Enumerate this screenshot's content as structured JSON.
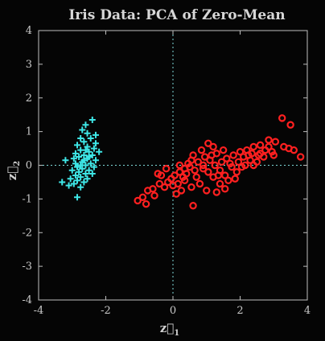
{
  "chart_data": {
    "type": "scatter",
    "title": "Iris Data: PCA of Zero-Mean",
    "xlabel": "z⃗",
    "xlabel_sub": "1",
    "ylabel": "z⃗",
    "ylabel_sub": "2",
    "xlim": [
      -4,
      4
    ],
    "ylim": [
      -4,
      4
    ],
    "xticks": [
      -4,
      -2,
      0,
      2,
      4
    ],
    "yticks": [
      -4,
      -3,
      -2,
      -1,
      0,
      1,
      2,
      3,
      4
    ],
    "grid": false,
    "reference_lines": {
      "x": 0,
      "y": 0,
      "style": "dotted"
    },
    "colors": {
      "background": "#050505",
      "axes": "#bfbfbf",
      "series_1": "#3ee6e6",
      "series_2": "#ff2020",
      "reference": "#7fd9d9"
    },
    "series": [
      {
        "marker": "plus",
        "color": "#3ee6e6",
        "points": [
          [
            -2.4,
            1.35
          ],
          [
            -2.6,
            1.2
          ],
          [
            -2.7,
            1.05
          ],
          [
            -2.55,
            0.95
          ],
          [
            -2.75,
            0.8
          ],
          [
            -2.45,
            0.8
          ],
          [
            -2.65,
            0.7
          ],
          [
            -2.3,
            0.65
          ],
          [
            -2.85,
            0.6
          ],
          [
            -2.55,
            0.55
          ],
          [
            -2.35,
            0.5
          ],
          [
            -2.75,
            0.45
          ],
          [
            -2.5,
            0.4
          ],
          [
            -2.2,
            0.4
          ],
          [
            -2.9,
            0.35
          ],
          [
            -2.65,
            0.3
          ],
          [
            -2.4,
            0.3
          ],
          [
            -2.8,
            0.25
          ],
          [
            -2.55,
            0.2
          ],
          [
            -2.3,
            0.15
          ],
          [
            -3.2,
            0.15
          ],
          [
            -2.7,
            0.1
          ],
          [
            -2.9,
            0.05
          ],
          [
            -2.45,
            0.05
          ],
          [
            -2.6,
            0.0
          ],
          [
            -2.85,
            -0.05
          ],
          [
            -2.35,
            -0.05
          ],
          [
            -2.7,
            -0.1
          ],
          [
            -3.0,
            -0.15
          ],
          [
            -2.5,
            -0.15
          ],
          [
            -2.8,
            -0.2
          ],
          [
            -2.6,
            -0.25
          ],
          [
            -2.9,
            -0.3
          ],
          [
            -2.75,
            -0.35
          ],
          [
            -3.05,
            -0.4
          ],
          [
            -2.55,
            -0.4
          ],
          [
            -2.85,
            -0.45
          ],
          [
            -2.65,
            -0.5
          ],
          [
            -3.3,
            -0.5
          ],
          [
            -2.95,
            -0.55
          ],
          [
            -3.1,
            -0.6
          ],
          [
            -2.75,
            -0.65
          ],
          [
            -2.85,
            -0.95
          ],
          [
            -2.5,
            0.25
          ],
          [
            -2.65,
            0.15
          ],
          [
            -2.4,
            -0.25
          ],
          [
            -2.6,
            0.45
          ],
          [
            -2.75,
            0.0
          ],
          [
            -2.95,
            0.2
          ],
          [
            -2.3,
            0.9
          ]
        ]
      },
      {
        "marker": "circle",
        "color": "#ff2020",
        "points": [
          [
            3.25,
            1.4
          ],
          [
            3.5,
            1.2
          ],
          [
            2.85,
            0.75
          ],
          [
            3.05,
            0.7
          ],
          [
            3.3,
            0.55
          ],
          [
            3.45,
            0.5
          ],
          [
            3.8,
            0.25
          ],
          [
            2.4,
            0.55
          ],
          [
            2.6,
            0.6
          ],
          [
            2.75,
            0.45
          ],
          [
            2.95,
            0.4
          ],
          [
            2.2,
            0.45
          ],
          [
            2.35,
            0.35
          ],
          [
            2.55,
            0.3
          ],
          [
            2.7,
            0.25
          ],
          [
            2.1,
            0.25
          ],
          [
            2.3,
            0.15
          ],
          [
            2.5,
            0.1
          ],
          [
            2.0,
            0.4
          ],
          [
            1.8,
            0.3
          ],
          [
            1.95,
            0.1
          ],
          [
            2.15,
            0.0
          ],
          [
            1.75,
            -0.05
          ],
          [
            1.6,
            0.2
          ],
          [
            1.45,
            0.1
          ],
          [
            1.3,
            0.35
          ],
          [
            1.2,
            0.55
          ],
          [
            1.05,
            0.65
          ],
          [
            0.85,
            0.45
          ],
          [
            0.95,
            0.25
          ],
          [
            1.1,
            0.15
          ],
          [
            1.25,
            0.0
          ],
          [
            1.4,
            -0.15
          ],
          [
            1.55,
            -0.3
          ],
          [
            1.65,
            -0.45
          ],
          [
            1.85,
            -0.4
          ],
          [
            1.4,
            -0.55
          ],
          [
            1.2,
            -0.35
          ],
          [
            1.05,
            -0.2
          ],
          [
            0.9,
            -0.1
          ],
          [
            0.75,
            0.1
          ],
          [
            0.6,
            0.3
          ],
          [
            0.65,
            -0.15
          ],
          [
            0.5,
            -0.05
          ],
          [
            0.4,
            -0.25
          ],
          [
            0.3,
            -0.35
          ],
          [
            0.2,
            -0.2
          ],
          [
            0.35,
            -0.45
          ],
          [
            0.15,
            -0.55
          ],
          [
            0.0,
            -0.6
          ],
          [
            -0.15,
            -0.5
          ],
          [
            -0.25,
            -0.65
          ],
          [
            -0.4,
            -0.55
          ],
          [
            -0.6,
            -0.7
          ],
          [
            -0.75,
            -0.75
          ],
          [
            -0.55,
            -0.9
          ],
          [
            -0.9,
            -0.95
          ],
          [
            -1.05,
            -1.05
          ],
          [
            -0.8,
            -1.15
          ],
          [
            -0.35,
            -0.3
          ],
          [
            0.05,
            -0.3
          ],
          [
            0.25,
            -0.75
          ],
          [
            0.55,
            -0.65
          ],
          [
            0.8,
            -0.55
          ],
          [
            1.0,
            -0.75
          ],
          [
            0.6,
            -1.2
          ],
          [
            1.3,
            -0.8
          ],
          [
            1.55,
            -0.7
          ],
          [
            0.45,
            0.05
          ],
          [
            0.7,
            -0.35
          ],
          [
            1.7,
            0.05
          ],
          [
            1.9,
            -0.2
          ],
          [
            2.05,
            -0.05
          ],
          [
            2.4,
            0.0
          ],
          [
            2.6,
            0.35
          ],
          [
            2.85,
            0.55
          ],
          [
            3.0,
            0.3
          ],
          [
            3.6,
            0.45
          ],
          [
            0.2,
            0.0
          ],
          [
            -0.05,
            -0.4
          ],
          [
            -0.2,
            -0.1
          ],
          [
            0.1,
            -0.85
          ],
          [
            0.9,
            0.0
          ],
          [
            1.15,
            0.3
          ],
          [
            1.5,
            0.45
          ],
          [
            1.35,
            -0.3
          ],
          [
            2.25,
            0.3
          ],
          [
            0.35,
            -0.1
          ],
          [
            0.55,
            0.15
          ],
          [
            -0.45,
            -0.25
          ]
        ]
      }
    ]
  }
}
